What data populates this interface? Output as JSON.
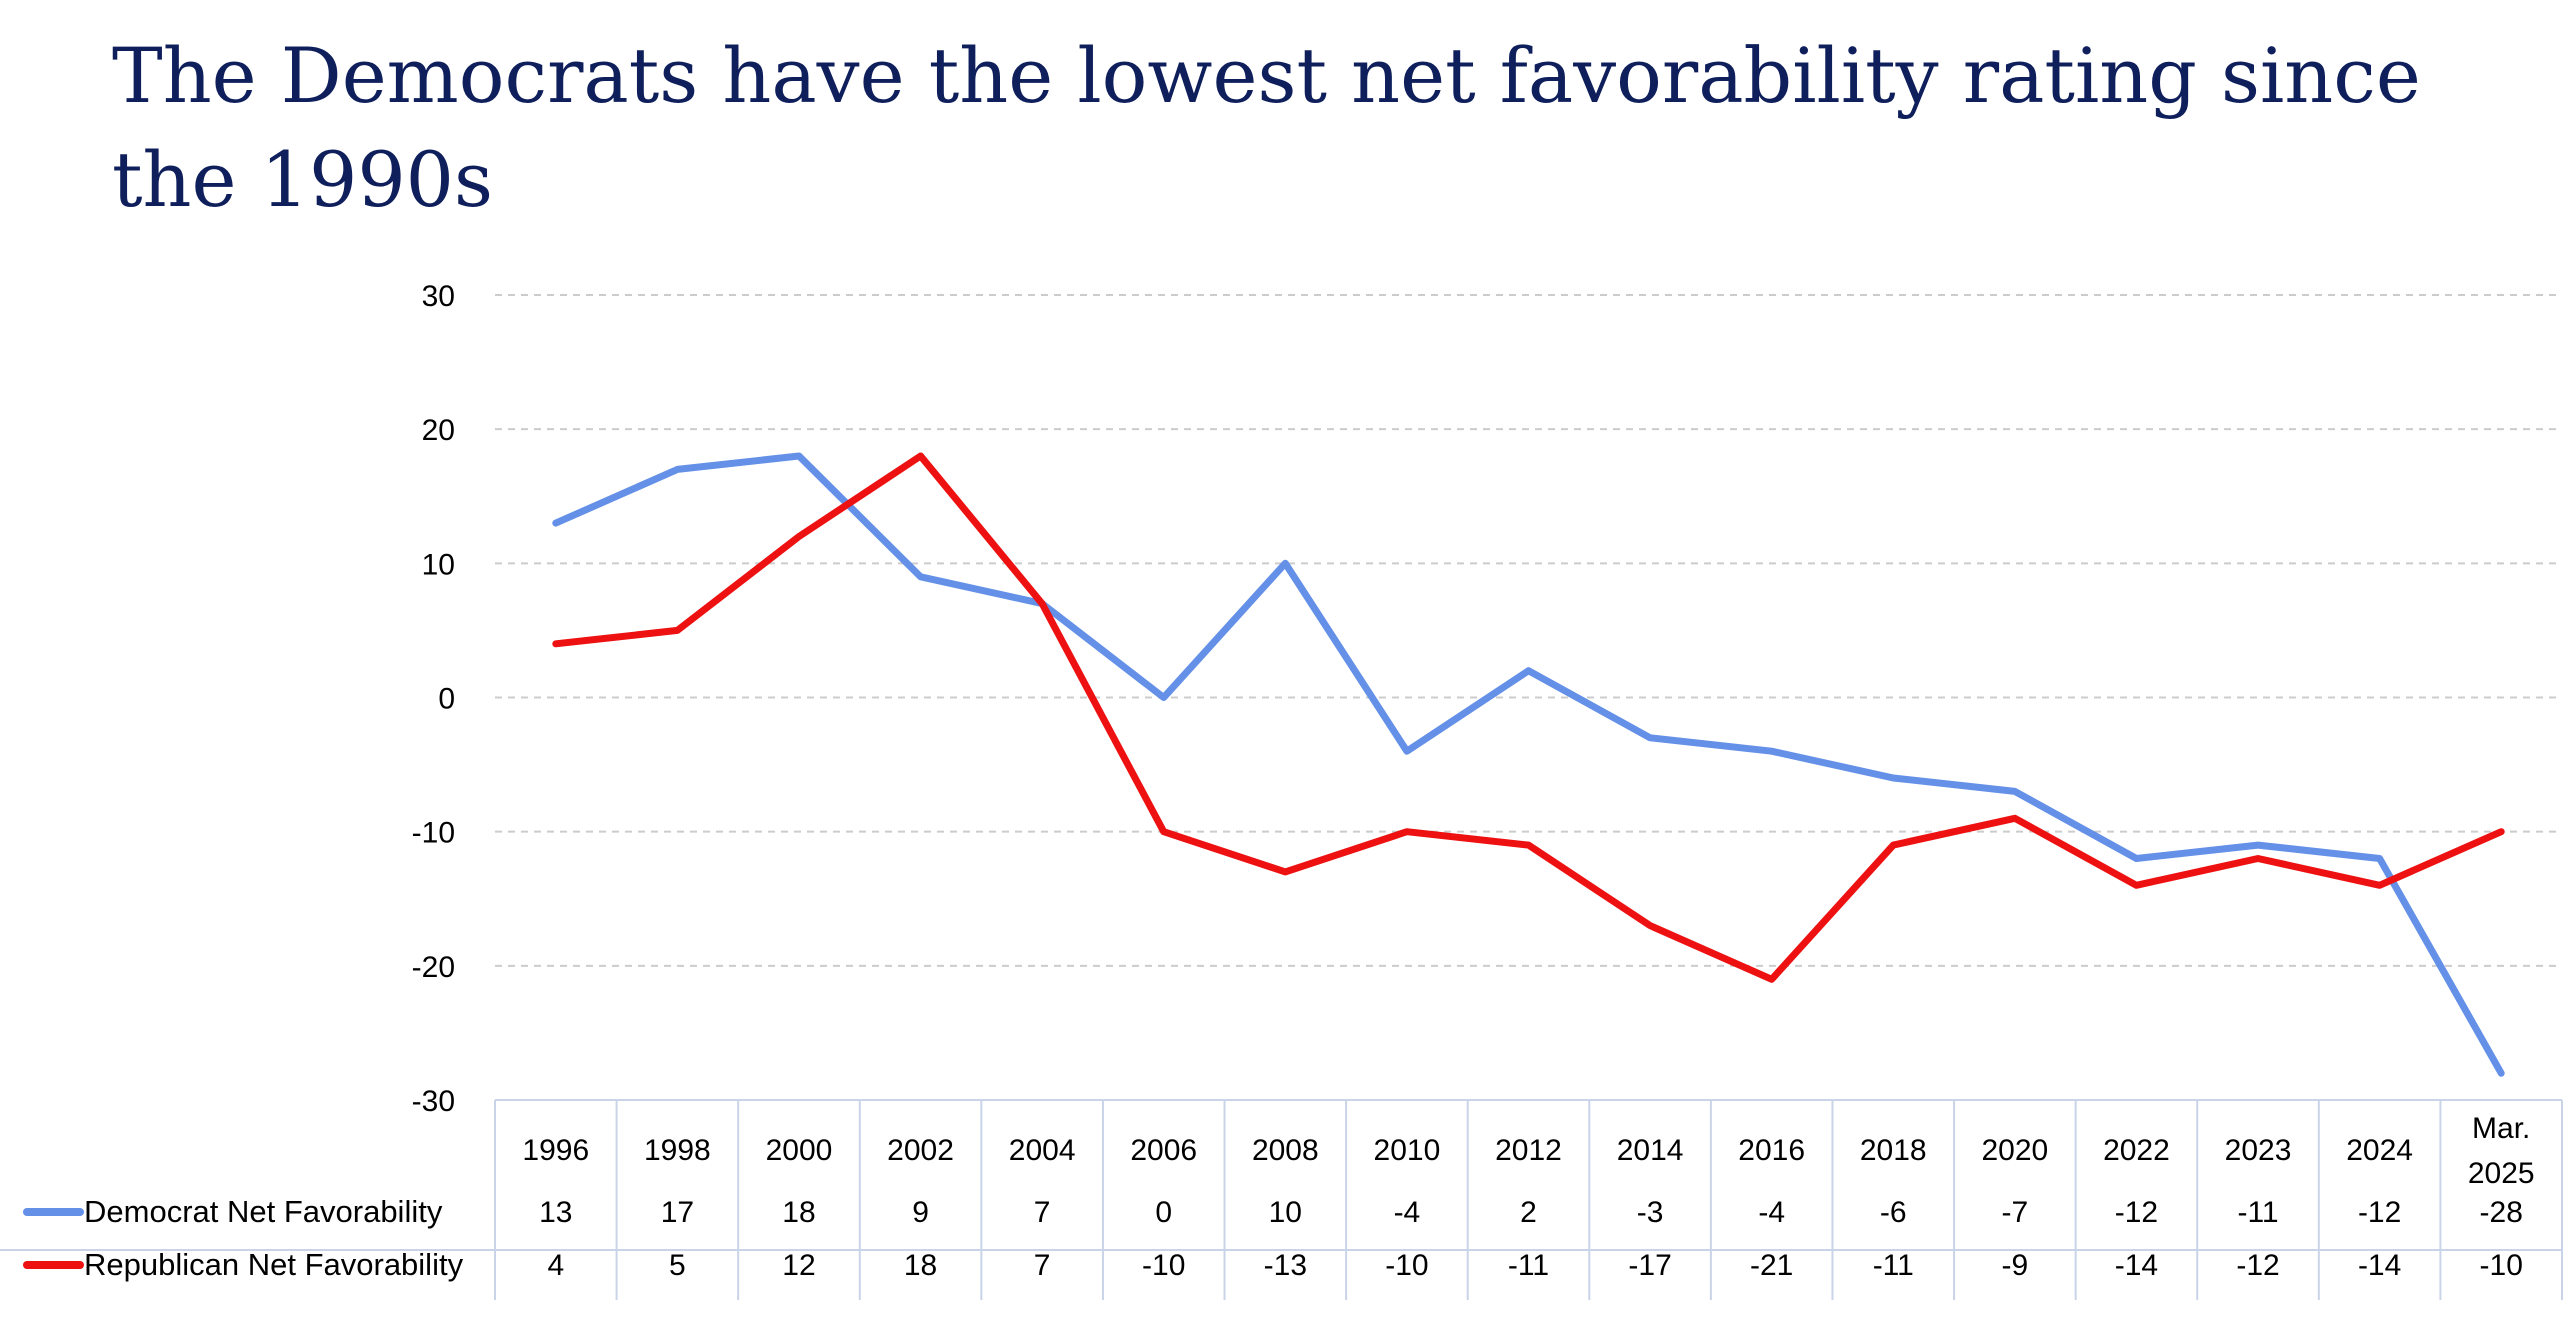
{
  "title": "The Democrats have the lowest net favorability rating since the 1990s",
  "chart_data": {
    "type": "line",
    "title": "The Democrats have the lowest net favorability rating since the 1990s",
    "categories": [
      "1996",
      "1998",
      "2000",
      "2002",
      "2004",
      "2006",
      "2008",
      "2010",
      "2012",
      "2014",
      "2016",
      "2018",
      "2020",
      "2022",
      "2023",
      "2024",
      "Mar. 2025"
    ],
    "series": [
      {
        "name": "Democrat Net Favorability",
        "color": "#6490e8",
        "values": [
          13,
          17,
          18,
          9,
          7,
          0,
          10,
          -4,
          2,
          -3,
          -4,
          -6,
          -7,
          -12,
          -11,
          -12,
          -28
        ]
      },
      {
        "name": "Republican Net Favorability",
        "color": "#ee1111",
        "values": [
          4,
          5,
          12,
          18,
          7,
          -10,
          -13,
          -10,
          -11,
          -17,
          -21,
          -11,
          -9,
          -14,
          -12,
          -14,
          -10
        ]
      }
    ],
    "ylim": [
      -30,
      30
    ],
    "yticks": [
      30,
      20,
      10,
      0,
      -10,
      -20,
      -30
    ],
    "grid": true,
    "legend": "data table below chart"
  }
}
